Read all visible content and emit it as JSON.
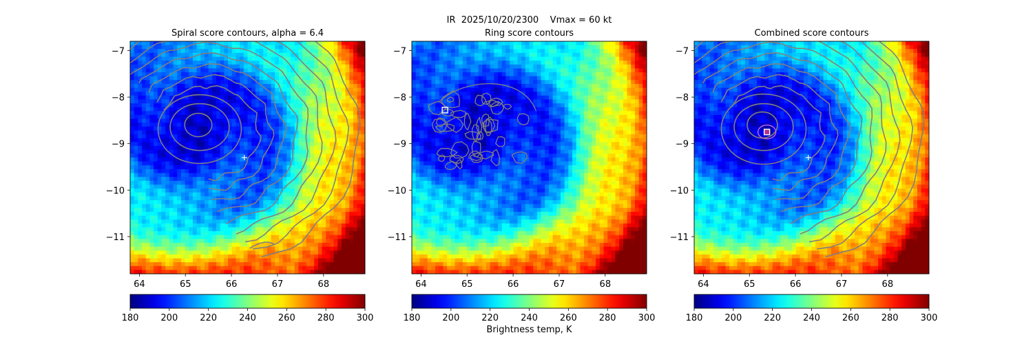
{
  "figure": {
    "suptitle": "IR  2025/10/20/2300    Vmax = 60 kt",
    "colorbar_label": "Brightness temp, K"
  },
  "chart_data": [
    {
      "type": "heatmap",
      "title": "Spiral score contours, alpha =  6.4",
      "xlim": [
        63.8,
        68.9
      ],
      "ylim": [
        -11.8,
        -6.8
      ],
      "x_ticks": [
        64,
        65,
        66,
        67,
        68
      ],
      "y_ticks": [
        -7,
        -8,
        -9,
        -10,
        -11
      ],
      "colorbar": {
        "range": [
          180,
          300
        ],
        "ticks": [
          180,
          200,
          220,
          240,
          260,
          280,
          300
        ],
        "colormap": "jet"
      },
      "marker": {
        "kind": "cross",
        "lon": 66.28,
        "lat": -9.3
      },
      "contours": "spiral"
    },
    {
      "type": "heatmap",
      "title": "Ring score contours",
      "xlim": [
        63.8,
        68.9
      ],
      "ylim": [
        -11.8,
        -6.8
      ],
      "x_ticks": [
        64,
        65,
        66,
        67,
        68
      ],
      "y_ticks": [
        -7,
        -8,
        -9,
        -10,
        -11
      ],
      "colorbar": {
        "range": [
          180,
          300
        ],
        "ticks": [
          180,
          200,
          220,
          240,
          260,
          280,
          300
        ],
        "colormap": "jet"
      },
      "marker": {
        "kind": "square",
        "lon": 64.52,
        "lat": -8.28
      },
      "contours": "ring"
    },
    {
      "type": "heatmap",
      "title": "Combined score contours",
      "xlim": [
        63.8,
        68.9
      ],
      "ylim": [
        -11.8,
        -6.8
      ],
      "x_ticks": [
        64,
        65,
        66,
        67,
        68
      ],
      "y_ticks": [
        -7,
        -8,
        -9,
        -10,
        -11
      ],
      "colorbar": {
        "range": [
          180,
          300
        ],
        "ticks": [
          180,
          200,
          220,
          240,
          260,
          280,
          300
        ],
        "colormap": "jet"
      },
      "marker": {
        "kind": "cross",
        "lon": 66.28,
        "lat": -9.3
      },
      "marker2": {
        "kind": "square",
        "lon": 65.38,
        "lat": -8.75
      },
      "contours": "combined"
    }
  ],
  "colors": {
    "contour": "#808080",
    "marker_cross": "#ffffff",
    "marker_square_edge": "#ffffff",
    "marker_square_fill2": "#b03090"
  }
}
